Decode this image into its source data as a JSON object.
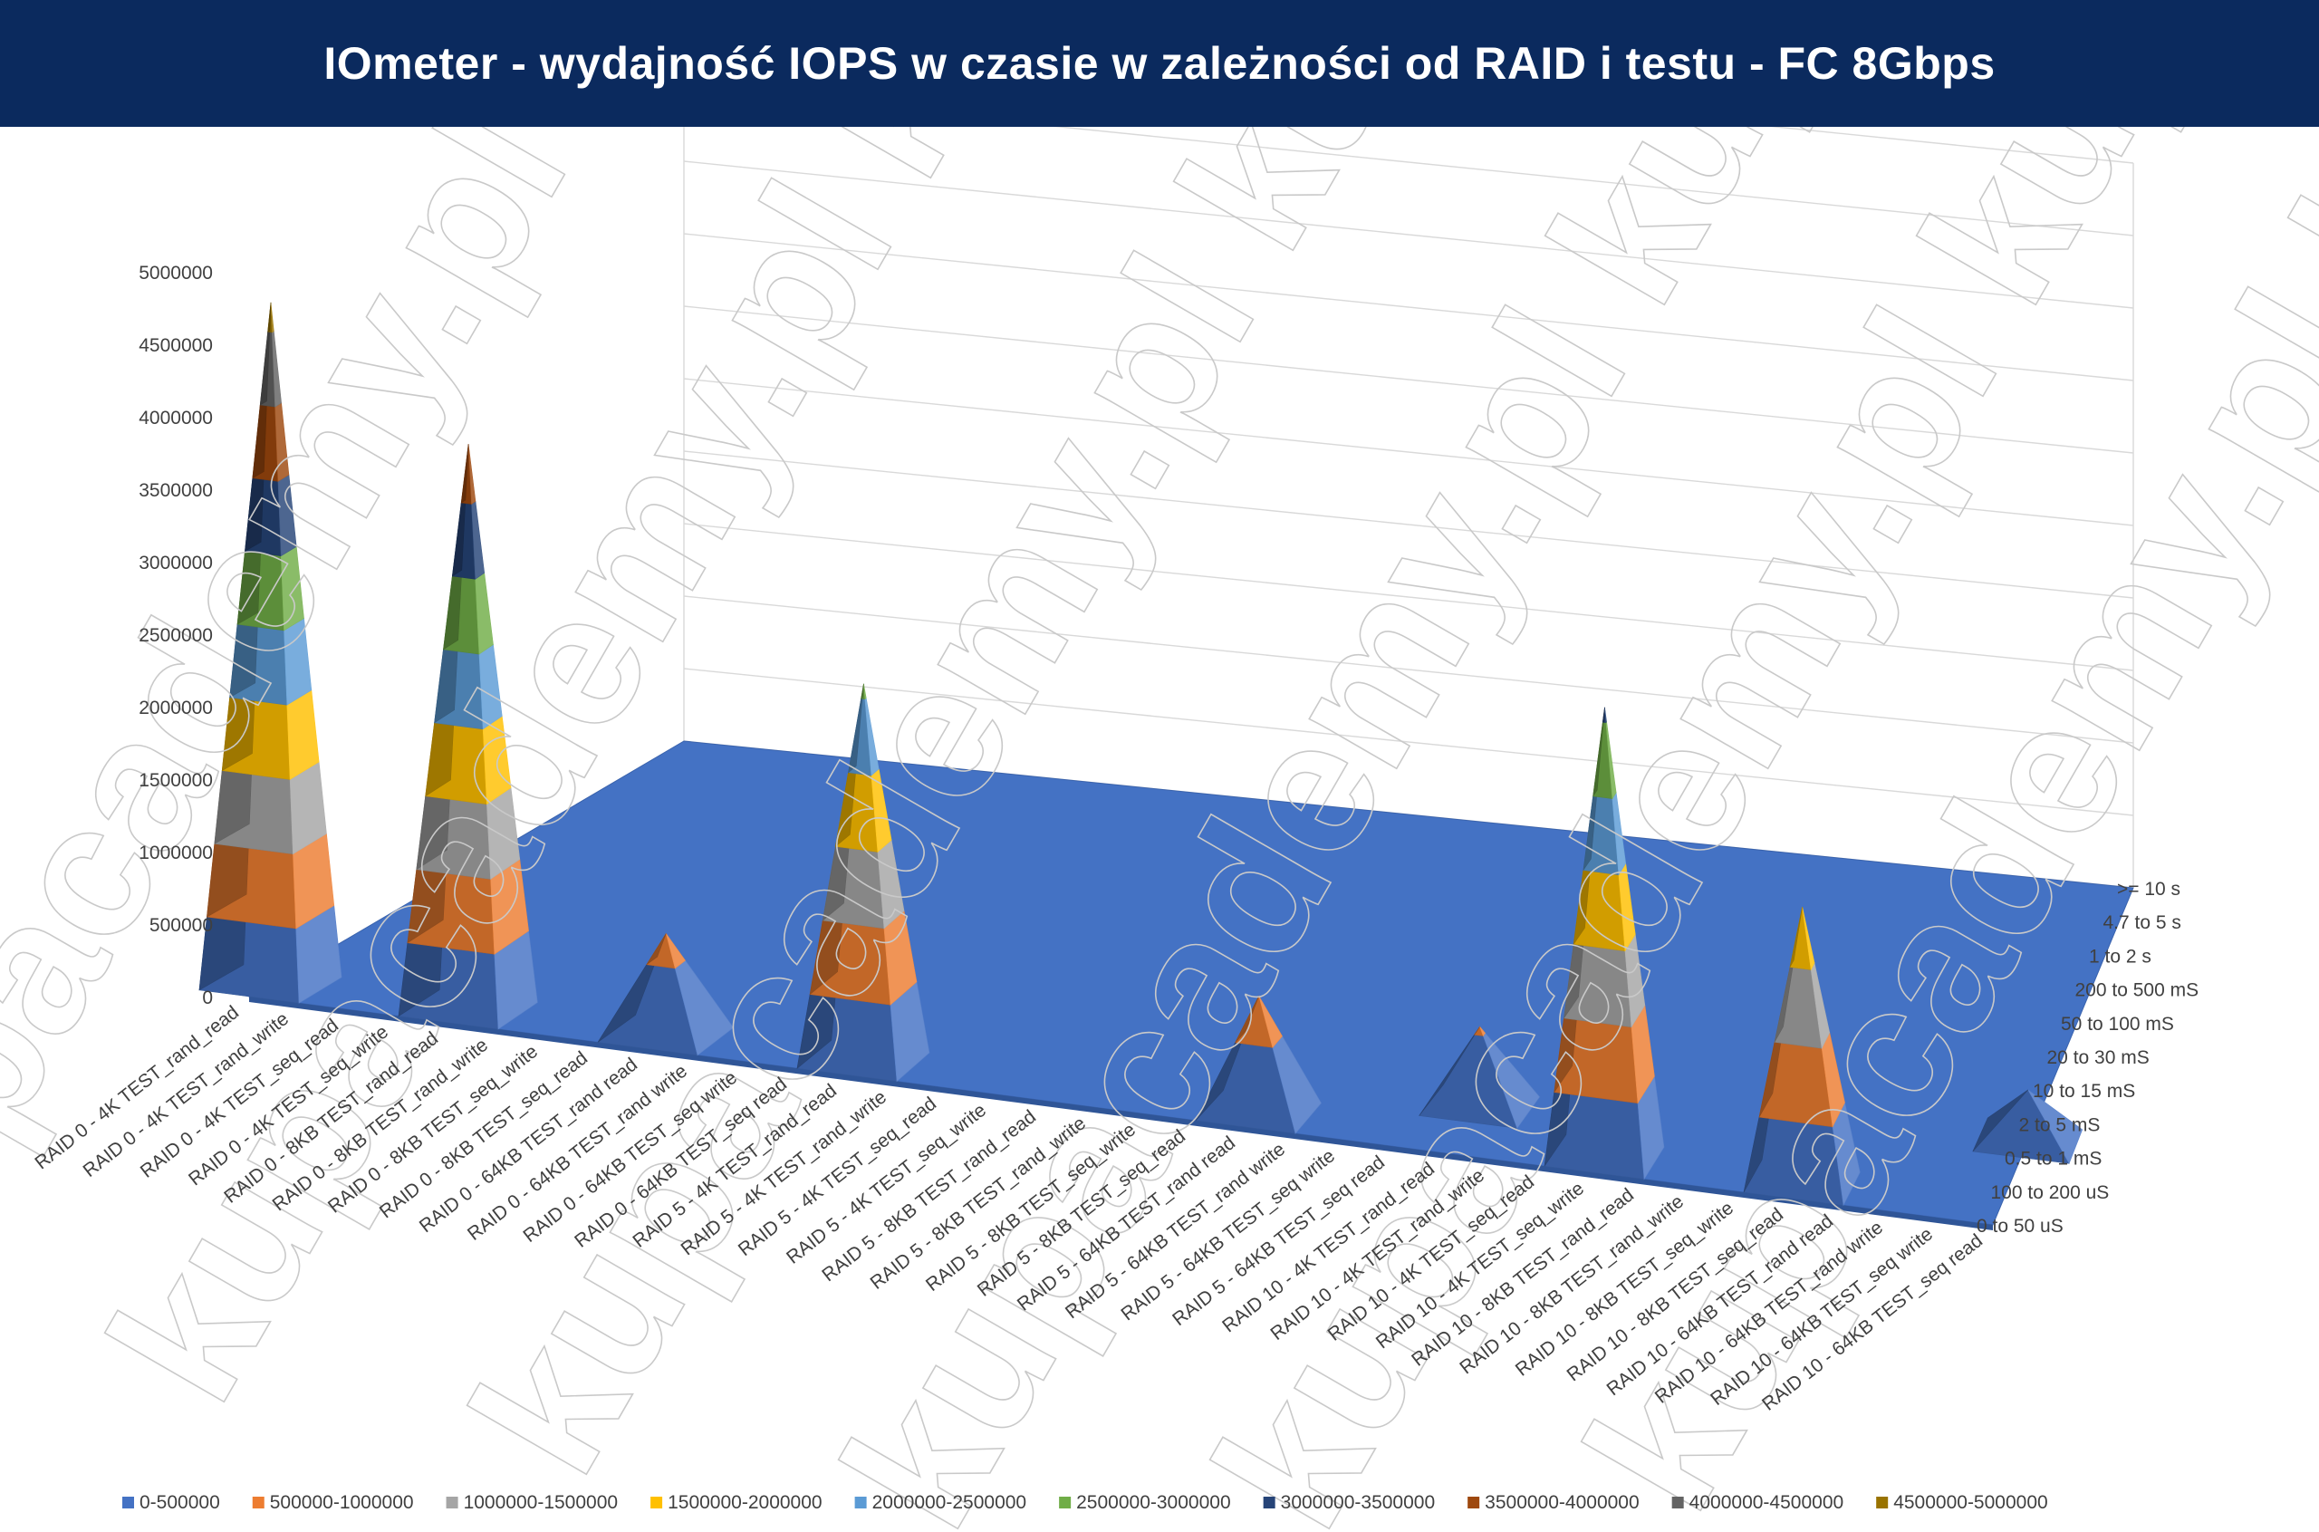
{
  "chart_data": {
    "type": "surface-3d",
    "title": "IOmeter - wydajność IOPS w czasie w zależności od RAID i testu - FC 8Gbps",
    "watermark": "kupacademy.pl kupacademy.pl kupacademy.pl",
    "zlim": [
      0,
      5000000
    ],
    "z_ticks": [
      "0",
      "500000",
      "1000000",
      "1500000",
      "2000000",
      "2500000",
      "3000000",
      "3500000",
      "4000000",
      "4500000",
      "5000000"
    ],
    "categories": [
      "RAID 0 - 4K TEST_rand_read",
      "RAID 0 - 4K TEST_rand_write",
      "RAID 0 - 4K TEST_seq_read",
      "RAID 0 - 4K TEST_seq_write",
      "RAID 0 - 8KB TEST_rand_read",
      "RAID 0 - 8KB TEST_rand_write",
      "RAID 0 - 8KB TEST_seq_write",
      "RAID 0 - 8KB TEST_seq_read",
      "RAID 0 - 64KB TEST_rand read",
      "RAID 0 - 64KB TEST_rand write",
      "RAID 0 - 64KB TEST_seq write",
      "RAID 0 - 64KB TEST_seq read",
      "RAID 5 - 4K TEST_rand_read",
      "RAID 5 - 4K TEST_rand_write",
      "RAID 5 - 4K TEST_seq_read",
      "RAID 5 - 4K TEST_seq_write",
      "RAID 5 - 8KB TEST_rand_read",
      "RAID 5 - 8KB TEST_rand_write",
      "RAID 5 - 8KB TEST_seq_write",
      "RAID 5 - 8KB TEST_seq_read",
      "RAID 5 - 64KB TEST_rand read",
      "RAID 5 - 64KB TEST_rand write",
      "RAID 5 - 64KB TEST_seq write",
      "RAID 5 - 64KB TEST_seq read",
      "RAID 10 - 4K TEST_rand_read",
      "RAID 10 - 4K TEST_rand_write",
      "RAID 10 - 4K TEST_seq_read",
      "RAID 10 - 4K TEST_seq_write",
      "RAID 10 - 8KB TEST_rand_read",
      "RAID 10 - 8KB TEST_rand_write",
      "RAID 10 - 8KB TEST_seq_write",
      "RAID 10 - 8KB TEST_seq_read",
      "RAID 10 - 64KB TEST_rand read",
      "RAID 10 - 64KB TEST_rand write",
      "RAID 10 - 64KB TEST_seq write",
      "RAID 10 - 64KB TEST_seq read"
    ],
    "depth_categories": [
      "0 to 50 uS",
      "100 to 200 uS",
      "0.5 to 1 mS",
      "2 to 5 mS",
      "10 to 15 mS",
      "20 to 30 mS",
      "50 to 100 mS",
      "200 to 500 mS",
      "1 to 2 s",
      "4.7 to 5 s",
      ">= 10 s"
    ],
    "legend": [
      {
        "label": "0-500000",
        "color": "#4472c4"
      },
      {
        "label": "500000-1000000",
        "color": "#ed7d31"
      },
      {
        "label": "1000000-1500000",
        "color": "#a5a5a5"
      },
      {
        "label": "1500000-2000000",
        "color": "#ffc000"
      },
      {
        "label": "2000000-2500000",
        "color": "#5b9bd5"
      },
      {
        "label": "2500000-3000000",
        "color": "#70ad47"
      },
      {
        "label": "3000000-3500000",
        "color": "#264478"
      },
      {
        "label": "3500000-4000000",
        "color": "#9e480e"
      },
      {
        "label": "4000000-4500000",
        "color": "#636363"
      },
      {
        "label": "4500000-5000000",
        "color": "#997300"
      }
    ],
    "peaks": [
      {
        "category": "RAID 0 - 4K TEST_rand_read",
        "depth": "0 to 50 uS",
        "value": 4700000
      },
      {
        "category": "RAID 0 - 8KB TEST_rand_read",
        "depth": "0 to 50 uS",
        "value": 3900000
      },
      {
        "category": "RAID 0 - 64KB TEST_rand read",
        "depth": "0 to 50 uS",
        "value": 700000
      },
      {
        "category": "RAID 5 - 4K TEST_rand_read",
        "depth": "0 to 50 uS",
        "value": 2600000
      },
      {
        "category": "RAID 5 - 64KB TEST_rand read",
        "depth": "0 to 50 uS",
        "value": 800000
      },
      {
        "category": "RAID 10 - 4K TEST_rand_read",
        "depth": "100 to 200 uS",
        "value": 550000
      },
      {
        "category": "RAID 10 - 4K TEST_seq_write",
        "depth": "0 to 50 uS",
        "value": 3100000
      },
      {
        "category": "RAID 10 - 8KB TEST_seq_read",
        "depth": "0 to 50 uS",
        "value": 1900000
      },
      {
        "category": "RAID 10 - 64KB TEST_seq read",
        "depth": "0.5 to 1 mS",
        "value": 350000
      }
    ],
    "legend_position": "bottom",
    "grid": true
  }
}
